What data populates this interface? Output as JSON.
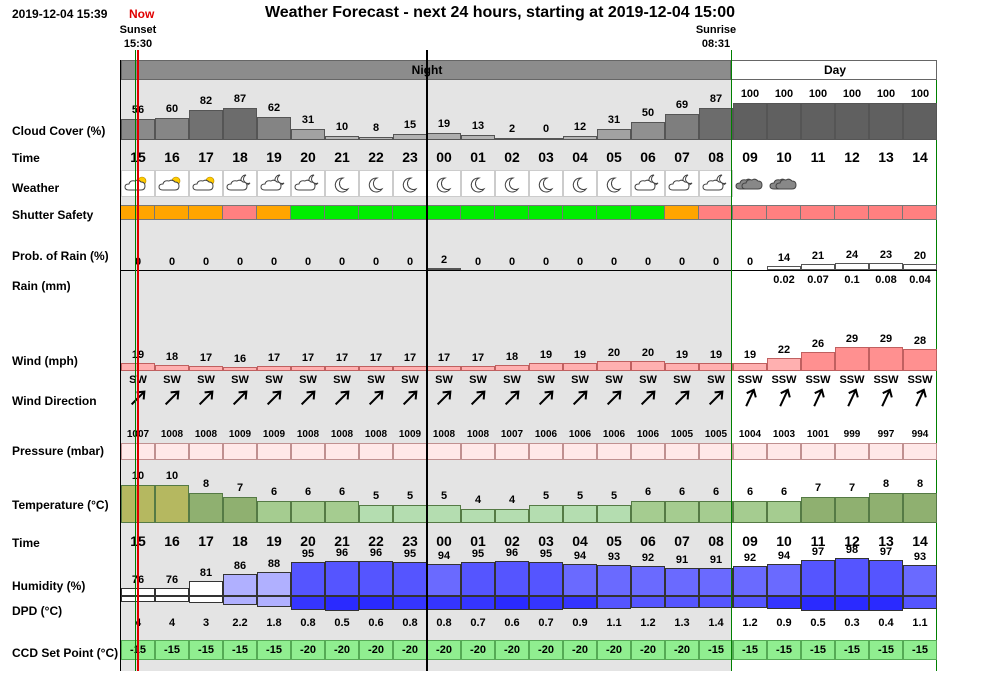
{
  "header": {
    "date_time": "2019-12-04 15:39",
    "now_label": "Now",
    "title": "Weather Forecast - next 24 hours, starting at 2019-12-04 15:00",
    "sunset_label": "Sunset",
    "sunset_time": "15:30",
    "sunrise_label": "Sunrise",
    "sunrise_time": "08:31"
  },
  "periods": {
    "night": "Night",
    "day": "Day"
  },
  "row_labels": {
    "cloud_cover": "Cloud Cover (%)",
    "time": "Time",
    "weather": "Weather",
    "shutter_safety": "Shutter Safety",
    "prob_rain": "Prob. of Rain (%)",
    "rain": "Rain (mm)",
    "wind": "Wind (mph)",
    "wind_direction": "Wind Direction",
    "pressure": "Pressure (mbar)",
    "temperature": "Temperature (°C)",
    "time2": "Time",
    "humidity": "Humidity (%)",
    "dpd": "DPD (°C)",
    "ccd": "CCD Set Point (°C)"
  },
  "hours": [
    "15",
    "16",
    "17",
    "18",
    "19",
    "20",
    "21",
    "22",
    "23",
    "00",
    "01",
    "02",
    "03",
    "04",
    "05",
    "06",
    "07",
    "08",
    "09",
    "10",
    "11",
    "12",
    "13",
    "14"
  ],
  "night_columns": 18,
  "cloud_cover": [
    56,
    60,
    82,
    87,
    62,
    31,
    10,
    8,
    15,
    19,
    13,
    2,
    0,
    12,
    31,
    50,
    69,
    87,
    100,
    100,
    100,
    100,
    100,
    100
  ],
  "weather_icons": [
    "cloud-sun-icon",
    "cloud-sun-icon",
    "cloud-sun-icon",
    "cloud-moon-icon",
    "cloud-moon-icon",
    "cloud-moon-icon",
    "moon-icon",
    "moon-icon",
    "moon-icon",
    "moon-icon",
    "moon-icon",
    "moon-icon",
    "moon-icon",
    "moon-icon",
    "moon-icon",
    "cloud-moon-icon",
    "cloud-moon-icon",
    "cloud-moon-icon",
    "cloud-icon",
    "cloud-icon",
    "",
    "",
    "",
    ""
  ],
  "shutter_safety": [
    "orange",
    "orange",
    "orange",
    "red",
    "orange",
    "green",
    "green",
    "green",
    "green",
    "green",
    "green",
    "green",
    "green",
    "green",
    "green",
    "green",
    "orange",
    "red",
    "red",
    "red",
    "red",
    "red",
    "red",
    "red"
  ],
  "shutter_colors": {
    "green": "#00ee00",
    "orange": "#ffa500",
    "red": "#ff8080"
  },
  "prob_rain": [
    0,
    0,
    0,
    0,
    0,
    0,
    0,
    0,
    0,
    2,
    0,
    0,
    0,
    0,
    0,
    0,
    0,
    0,
    0,
    14,
    21,
    24,
    23,
    20
  ],
  "rain": [
    "",
    "",
    "",
    "",
    "",
    "",
    "",
    "",
    "",
    "",
    "",
    "",
    "",
    "",
    "",
    "",
    "",
    "",
    "",
    "0.02",
    "0.07",
    "0.1",
    "0.08",
    "0.04"
  ],
  "wind": [
    19,
    18,
    17,
    16,
    17,
    17,
    17,
    17,
    17,
    17,
    17,
    18,
    19,
    19,
    20,
    20,
    19,
    19,
    19,
    22,
    26,
    29,
    29,
    28
  ],
  "wind_direction": [
    "SW",
    "SW",
    "SW",
    "SW",
    "SW",
    "SW",
    "SW",
    "SW",
    "SW",
    "SW",
    "SW",
    "SW",
    "SW",
    "SW",
    "SW",
    "SW",
    "SW",
    "SW",
    "SSW",
    "SSW",
    "SSW",
    "SSW",
    "SSW",
    "SSW"
  ],
  "pressure": [
    1007,
    1008,
    1008,
    1009,
    1009,
    1008,
    1008,
    1008,
    1009,
    1008,
    1008,
    1007,
    1006,
    1006,
    1006,
    1006,
    1005,
    1005,
    1004,
    1003,
    1001,
    999,
    997,
    994
  ],
  "temperature": [
    10,
    10,
    8,
    7,
    6,
    6,
    6,
    5,
    5,
    5,
    4,
    4,
    5,
    5,
    5,
    6,
    6,
    6,
    6,
    6,
    7,
    7,
    8,
    8
  ],
  "humidity": [
    76,
    76,
    81,
    86,
    88,
    95,
    96,
    96,
    95,
    94,
    95,
    96,
    95,
    94,
    93,
    92,
    91,
    91,
    92,
    94,
    97,
    98,
    97,
    93
  ],
  "dpd": [
    4,
    4,
    3,
    2.2,
    1.8,
    0.8,
    0.5,
    0.6,
    0.8,
    0.8,
    0.7,
    0.6,
    0.7,
    0.9,
    1.1,
    1.2,
    1.3,
    1.4,
    1.2,
    0.9,
    0.5,
    0.3,
    0.4,
    1.1
  ],
  "ccd_set_point": [
    -15,
    -15,
    -15,
    -15,
    -15,
    -20,
    -20,
    -20,
    -20,
    -20,
    -20,
    -20,
    -20,
    -20,
    -20,
    -20,
    -20,
    -15,
    -15,
    -15,
    -15,
    -15,
    -15,
    -15
  ],
  "colors": {
    "night_bg": "#e4e4e4",
    "night_bar": "#8c8c8c",
    "sunset_line": "#e00000",
    "sun_event_line": "#008000",
    "ccd_cell": "#90ee90",
    "wind_cell": "#ffb0b0",
    "pressure_cell": "#ffe8e8"
  }
}
